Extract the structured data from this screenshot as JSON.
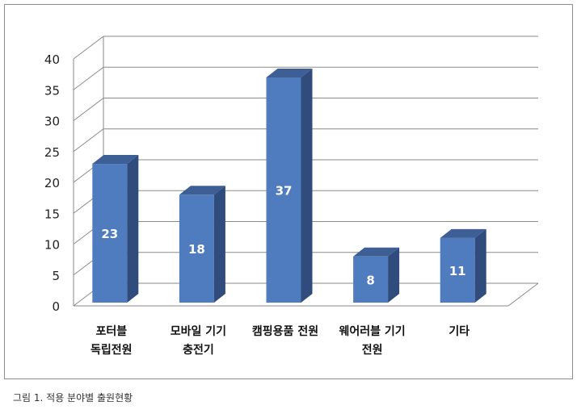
{
  "chart_data": {
    "type": "bar",
    "categories": [
      [
        "포터블",
        "독립전원"
      ],
      [
        "모바일 기기",
        "충전기"
      ],
      [
        "캠핑용품 전원"
      ],
      [
        "웨어러블 기기",
        "전원"
      ],
      [
        "기타"
      ]
    ],
    "values": [
      23,
      18,
      37,
      8,
      11
    ],
    "data_labels": [
      "23",
      "18",
      "37",
      "8",
      "11"
    ],
    "yticks": [
      "0",
      "5",
      "10",
      "15",
      "20",
      "25",
      "30",
      "35",
      "40"
    ],
    "ylim": [
      0,
      40
    ],
    "grid": true,
    "bar_color": "#4f7bbf",
    "title": "",
    "xlabel": "",
    "ylabel": ""
  },
  "caption": "그림 1. 적용 분야별 출원현황"
}
